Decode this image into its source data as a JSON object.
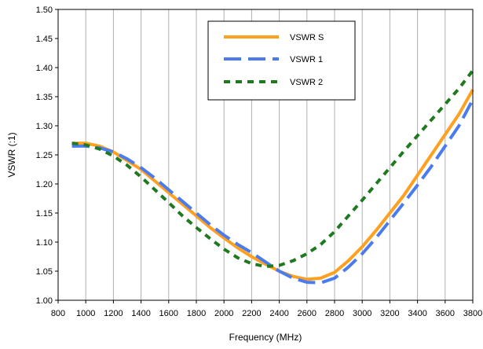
{
  "chart_data": {
    "type": "line",
    "xlabel": "Frequency (MHz)",
    "ylabel": "VSWR (:1)",
    "xlim": [
      800,
      3800
    ],
    "ylim": [
      1.0,
      1.5
    ],
    "x_ticks": [
      800,
      1000,
      1200,
      1400,
      1600,
      1800,
      2000,
      2200,
      2400,
      2600,
      2800,
      3000,
      3200,
      3400,
      3600,
      3800
    ],
    "x_tick_labels": [
      "800",
      "1000",
      "1200",
      "1400",
      "1600",
      "1800",
      "2000",
      "2200",
      "2400",
      "2600",
      "2800",
      "3000",
      "3200",
      "3400",
      "3600",
      "3800"
    ],
    "y_ticks": [
      1.0,
      1.05,
      1.1,
      1.15,
      1.2,
      1.25,
      1.3,
      1.35,
      1.4,
      1.45,
      1.5
    ],
    "y_tick_labels": [
      "1.00",
      "1.05",
      "1.10",
      "1.15",
      "1.20",
      "1.25",
      "1.30",
      "1.35",
      "1.40",
      "1.45",
      "1.50"
    ],
    "grid": {
      "vertical": true,
      "horizontal": false,
      "color": "#b0b0b0"
    },
    "legend_position": "top-center",
    "series": [
      {
        "name": "VSWR S",
        "color": "#ffa020",
        "style": "solid",
        "x": [
          900,
          1000,
          1100,
          1200,
          1300,
          1400,
          1500,
          1600,
          1700,
          1800,
          1900,
          2000,
          2100,
          2200,
          2300,
          2400,
          2500,
          2600,
          2700,
          2800,
          2900,
          3000,
          3100,
          3200,
          3300,
          3400,
          3500,
          3600,
          3700,
          3800
        ],
        "y": [
          1.27,
          1.27,
          1.265,
          1.255,
          1.24,
          1.225,
          1.205,
          1.185,
          1.165,
          1.145,
          1.125,
          1.107,
          1.09,
          1.075,
          1.062,
          1.05,
          1.041,
          1.036,
          1.038,
          1.048,
          1.068,
          1.092,
          1.12,
          1.15,
          1.18,
          1.215,
          1.25,
          1.285,
          1.32,
          1.362
        ]
      },
      {
        "name": "VSWR 1",
        "color": "#4a7cf0",
        "style": "long-dash",
        "x": [
          900,
          1000,
          1100,
          1200,
          1300,
          1400,
          1500,
          1600,
          1700,
          1800,
          1900,
          2000,
          2100,
          2200,
          2300,
          2400,
          2500,
          2600,
          2700,
          2800,
          2900,
          3000,
          3100,
          3200,
          3300,
          3400,
          3500,
          3600,
          3700,
          3800
        ],
        "y": [
          1.265,
          1.265,
          1.262,
          1.255,
          1.243,
          1.228,
          1.21,
          1.19,
          1.17,
          1.15,
          1.13,
          1.112,
          1.096,
          1.082,
          1.066,
          1.05,
          1.038,
          1.031,
          1.03,
          1.038,
          1.057,
          1.08,
          1.107,
          1.137,
          1.167,
          1.198,
          1.23,
          1.265,
          1.3,
          1.345
        ]
      },
      {
        "name": "VSWR 2",
        "color": "#1f7a1f",
        "style": "short-dash",
        "x": [
          900,
          1000,
          1100,
          1200,
          1300,
          1400,
          1500,
          1600,
          1700,
          1800,
          1900,
          2000,
          2100,
          2200,
          2300,
          2400,
          2500,
          2600,
          2700,
          2800,
          2900,
          3000,
          3100,
          3200,
          3300,
          3400,
          3500,
          3600,
          3700,
          3800
        ],
        "y": [
          1.27,
          1.267,
          1.26,
          1.248,
          1.232,
          1.212,
          1.19,
          1.168,
          1.145,
          1.125,
          1.106,
          1.088,
          1.073,
          1.063,
          1.058,
          1.06,
          1.068,
          1.08,
          1.096,
          1.118,
          1.145,
          1.172,
          1.2,
          1.228,
          1.256,
          1.283,
          1.31,
          1.337,
          1.364,
          1.395
        ]
      }
    ]
  }
}
